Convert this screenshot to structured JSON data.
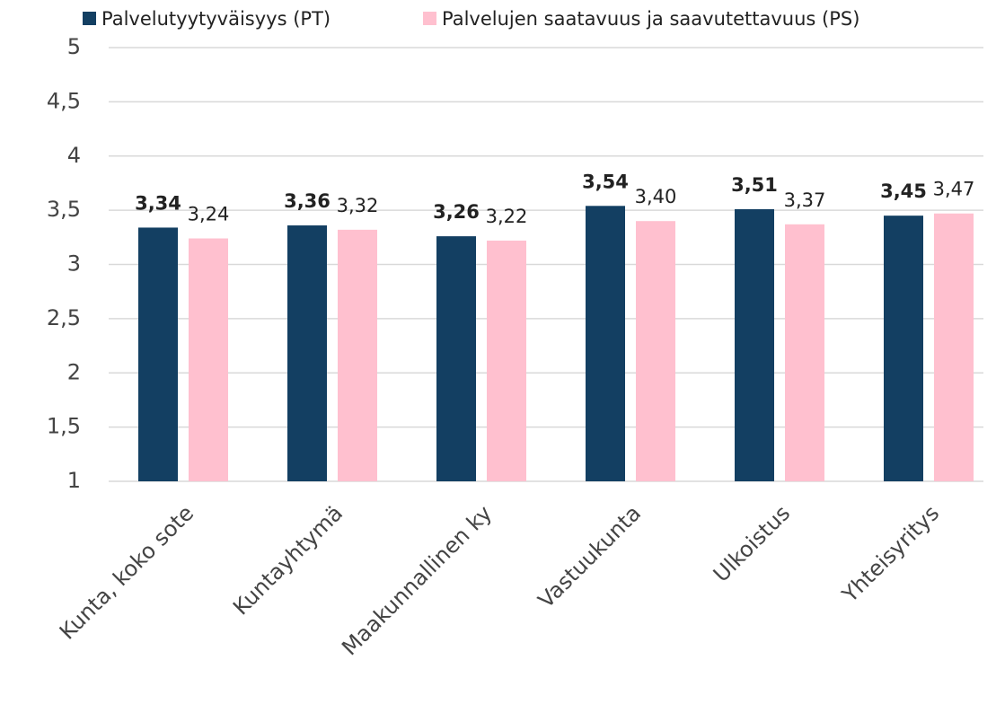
{
  "chart_data": {
    "type": "bar",
    "categories": [
      "Kunta, koko sote",
      "Kuntayhtymä",
      "Maakunnallinen ky",
      "Vastuukunta",
      "Ulkoistus",
      "Yhteisyritys"
    ],
    "series": [
      {
        "name": "Palvelutyytyväisyys (PT)",
        "color": "#133f62",
        "values": [
          3.34,
          3.36,
          3.26,
          3.54,
          3.51,
          3.45
        ],
        "value_labels": [
          "3,34",
          "3,36",
          "3,26",
          "3,54",
          "3,51",
          "3,45"
        ]
      },
      {
        "name": "Palvelujen saatavuus ja saavutettavuus (PS)",
        "color": "#ffc0cf",
        "values": [
          3.24,
          3.32,
          3.22,
          3.4,
          3.37,
          3.47
        ],
        "value_labels": [
          "3,24",
          "3,32",
          "3,22",
          "3,40",
          "3,37",
          "3,47"
        ]
      }
    ],
    "ylim": [
      1,
      5
    ],
    "yticks": [
      1,
      {
        "value": 1.5,
        "label": "1,5"
      },
      2,
      {
        "value": 2.5,
        "label": "2,5"
      },
      3,
      {
        "value": 3.5,
        "label": "3,5"
      },
      4,
      {
        "value": 4.5,
        "label": "4,5"
      },
      5
    ],
    "grid": true,
    "legend": "top"
  }
}
